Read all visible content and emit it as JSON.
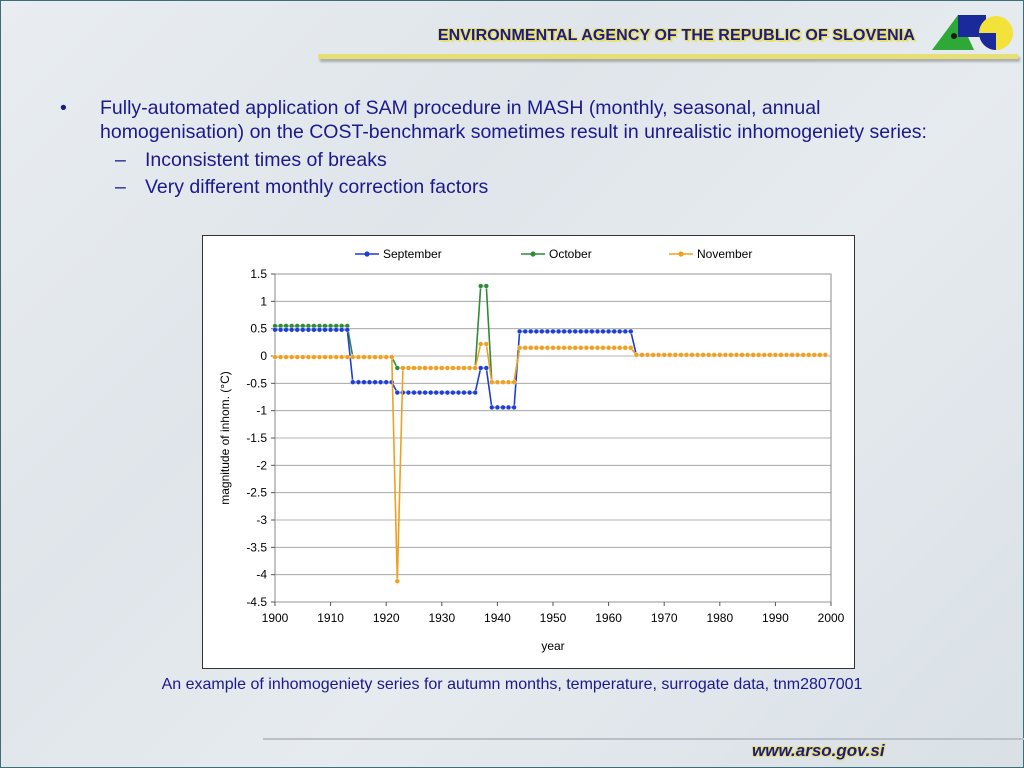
{
  "header": {
    "title": "ENVIRONMENTAL AGENCY OF THE REPUBLIC OF SLOVENIA"
  },
  "bullets": {
    "main": "Fully-automated application of SAM procedure in MASH (monthly, seasonal, annual homogenisation) on the COST-benchmark sometimes result in unrealistic inhomogeniety series:",
    "main_marker": "•",
    "sub_marker": "–",
    "sub": [
      "Inconsistent times of breaks",
      "Very different monthly correction factors"
    ]
  },
  "caption": "An example of inhomogeniety series for autumn months, temperature, surrogate data, tnm2807001",
  "footer": {
    "url": "www.arso.gov.si"
  },
  "colors": {
    "text": "#1a1a8c",
    "accent": "#e6df73",
    "september": "#1f3fd0",
    "october": "#2e8b3a",
    "november": "#f0a020"
  },
  "chart_data": {
    "type": "line",
    "xlabel": "year",
    "ylabel": "magnitude of inhom. (°C)",
    "xlim": [
      1900,
      2000
    ],
    "ylim": [
      -4.5,
      1.5
    ],
    "xticks": [
      "1900",
      "1910",
      "1920",
      "1930",
      "1940",
      "1950",
      "1960",
      "1970",
      "1980",
      "1990",
      "2000"
    ],
    "yticks": [
      "1.5",
      "1",
      "0.5",
      "0",
      "-0.5",
      "-1",
      "-1.5",
      "-2",
      "-2.5",
      "-3",
      "-3.5",
      "-4",
      "-4.5"
    ],
    "legend": "top",
    "grid": true,
    "series": [
      {
        "name": "September",
        "color": "#1f3fd0",
        "segments": [
          {
            "from": 1900,
            "to": 1913,
            "value": 0.48
          },
          {
            "from": 1914,
            "to": 1921,
            "value": -0.48
          },
          {
            "from": 1922,
            "to": 1936,
            "value": -0.67
          },
          {
            "from": 1937,
            "to": 1938,
            "value": -0.22
          },
          {
            "from": 1939,
            "to": 1943,
            "value": -0.94
          },
          {
            "from": 1944,
            "to": 1964,
            "value": 0.45
          },
          {
            "from": 1965,
            "to": 1999,
            "value": 0.02
          }
        ]
      },
      {
        "name": "October",
        "color": "#2e8b3a",
        "segments": [
          {
            "from": 1900,
            "to": 1913,
            "value": 0.55
          },
          {
            "from": 1914,
            "to": 1921,
            "value": -0.02
          },
          {
            "from": 1922,
            "to": 1936,
            "value": -0.22
          },
          {
            "from": 1937,
            "to": 1938,
            "value": 1.28
          },
          {
            "from": 1939,
            "to": 1943,
            "value": -0.48
          },
          {
            "from": 1944,
            "to": 1964,
            "value": 0.15
          },
          {
            "from": 1965,
            "to": 1999,
            "value": 0.02
          }
        ]
      },
      {
        "name": "November",
        "color": "#f0a020",
        "segments": [
          {
            "from": 1900,
            "to": 1921,
            "value": -0.02
          },
          {
            "from": 1922,
            "to": 1922,
            "value": -4.12
          },
          {
            "from": 1923,
            "to": 1936,
            "value": -0.22
          },
          {
            "from": 1937,
            "to": 1938,
            "value": 0.22
          },
          {
            "from": 1939,
            "to": 1943,
            "value": -0.48
          },
          {
            "from": 1944,
            "to": 1964,
            "value": 0.15
          },
          {
            "from": 1965,
            "to": 1999,
            "value": 0.02
          }
        ]
      }
    ]
  }
}
